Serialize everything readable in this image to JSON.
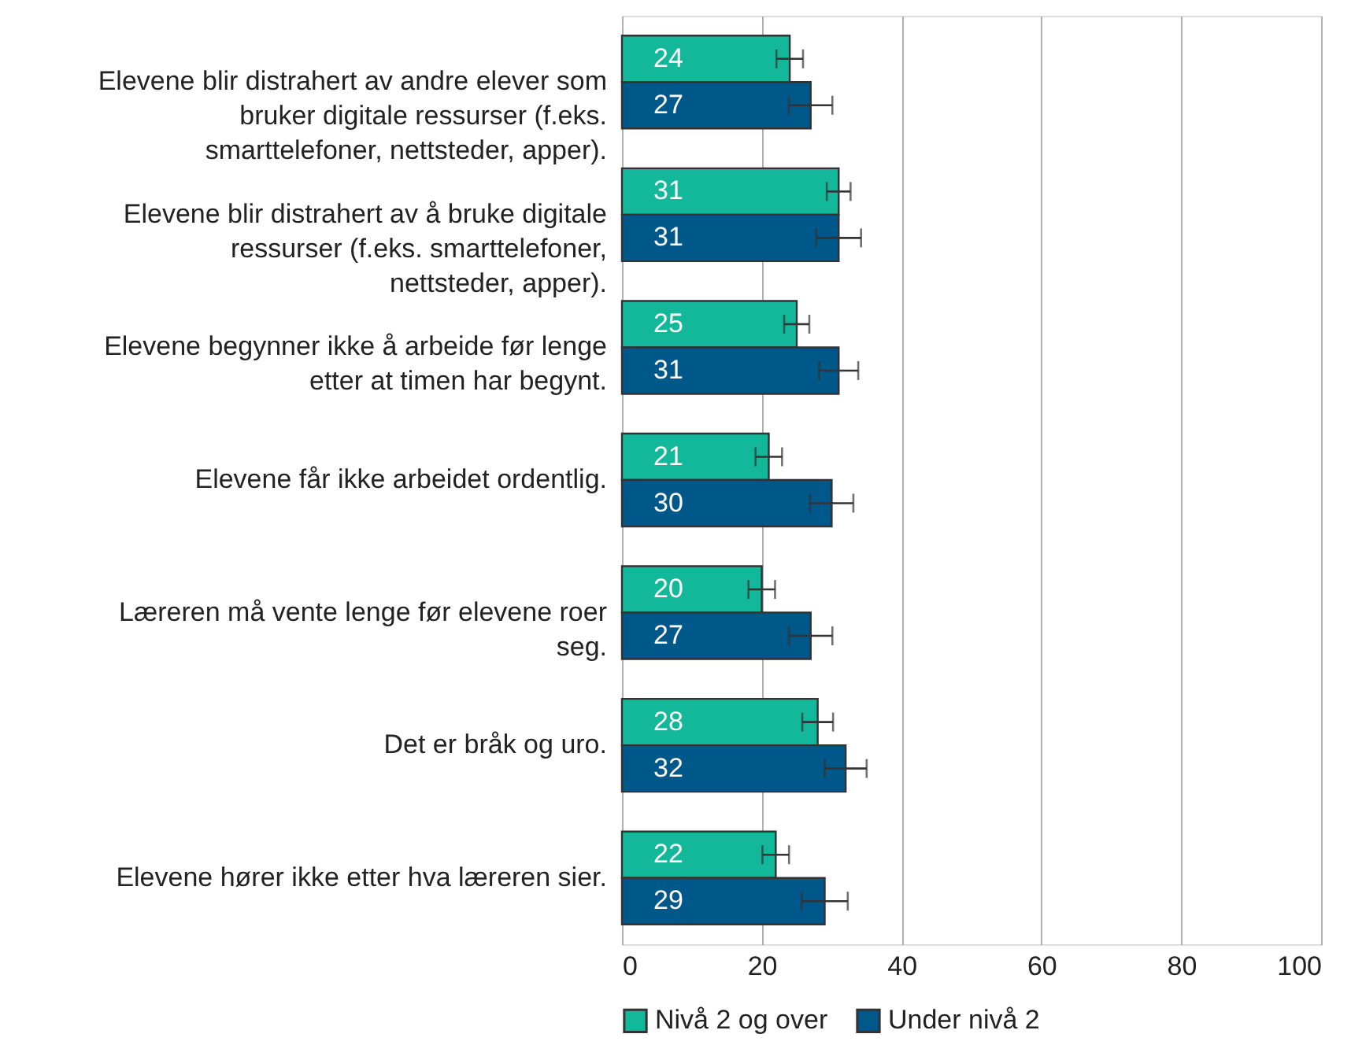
{
  "chart_data": {
    "type": "bar",
    "orientation": "horizontal",
    "categories": [
      "Elevene blir distrahert av andre elever som bruker digitale ressurser (f.eks. smarttelefoner, nettsteder, apper).",
      "Elevene blir distrahert av å bruke digitale ressurser (f.eks. smarttelefoner, nettsteder, apper).",
      "Elevene begynner ikke å arbeide før lenge etter at timen har begynt.",
      "Elevene får ikke arbeidet ordentlig.",
      "Læreren må vente lenge før elevene roer seg.",
      "Det er bråk og uro.",
      "Elevene hører ikke etter hva læreren sier."
    ],
    "series": [
      {
        "name": "Nivå 2 og over",
        "color": "#13b89b",
        "values": [
          24,
          31,
          25,
          21,
          20,
          28,
          22
        ],
        "errors": [
          1.9,
          1.7,
          1.8,
          1.9,
          1.9,
          2.2,
          1.9
        ]
      },
      {
        "name": "Under nivå 2",
        "color": "#00578a",
        "values": [
          27,
          31,
          31,
          30,
          27,
          32,
          29
        ],
        "errors": [
          3.1,
          3.2,
          2.8,
          3.1,
          3.1,
          3.0,
          3.3
        ]
      }
    ],
    "xlim": [
      0,
      100
    ],
    "xticks": [
      0,
      20,
      40,
      60,
      80,
      100
    ],
    "grid": "x",
    "legend": "bottom",
    "data_labels": true
  }
}
